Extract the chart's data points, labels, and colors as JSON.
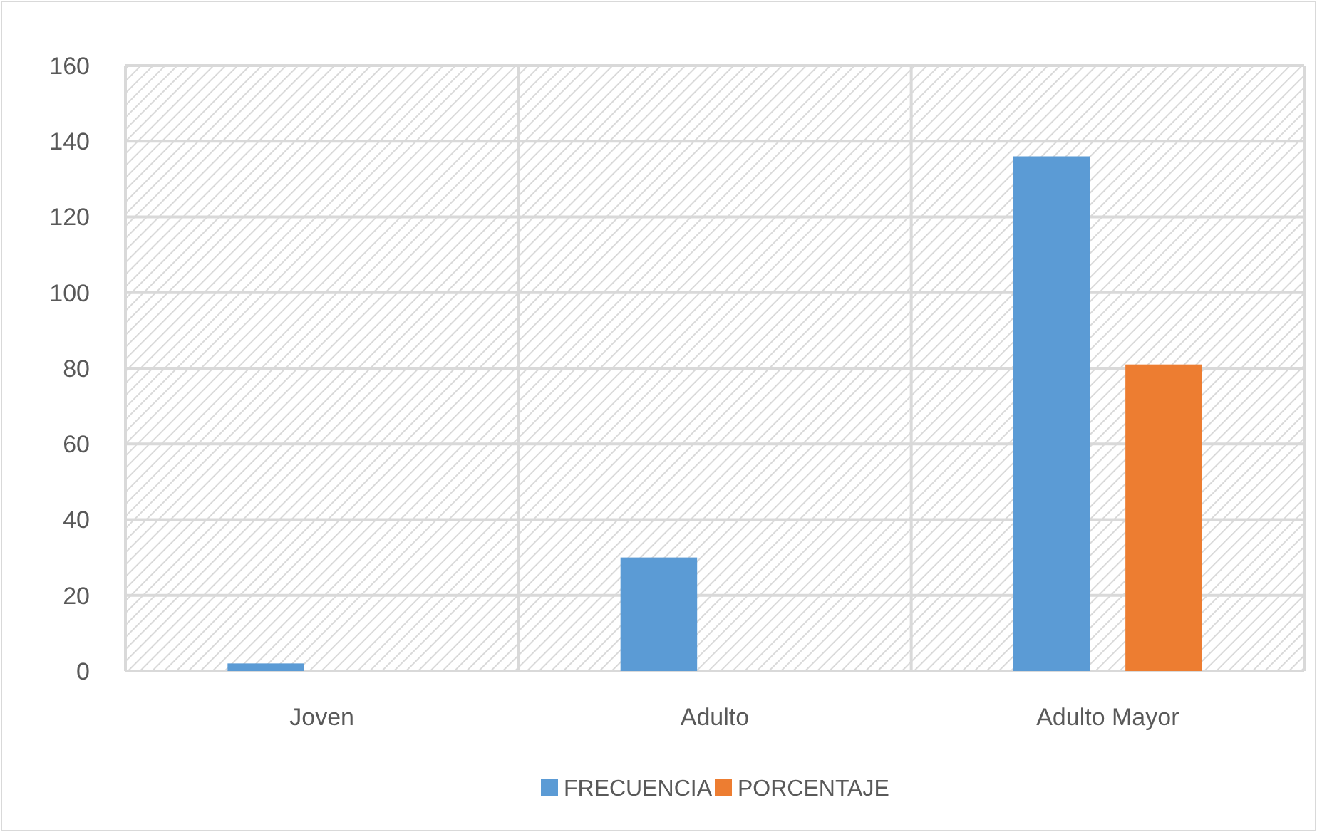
{
  "chart_data": {
    "type": "bar",
    "categories": [
      "Joven",
      "Adulto",
      "Adulto Mayor"
    ],
    "series": [
      {
        "name": "FRECUENCIA",
        "color": "#5b9bd5",
        "values": [
          2,
          30,
          136
        ]
      },
      {
        "name": "PORCENTAJE",
        "color": "#ed7d31",
        "values": [
          null,
          null,
          81
        ]
      }
    ],
    "ylim": [
      0,
      160
    ],
    "yticks": [
      0,
      20,
      40,
      60,
      80,
      100,
      120,
      140,
      160
    ],
    "grid": true,
    "legend": "bottom"
  }
}
